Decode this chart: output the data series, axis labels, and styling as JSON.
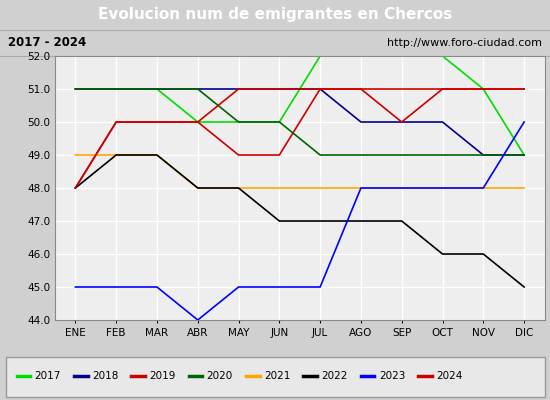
{
  "title": "Evolucion num de emigrantes en Chercos",
  "subtitle_left": "2017 - 2024",
  "subtitle_right": "http://www.foro-ciudad.com",
  "months": [
    "ENE",
    "FEB",
    "MAR",
    "ABR",
    "MAY",
    "JUN",
    "JUL",
    "AGO",
    "SEP",
    "OCT",
    "NOV",
    "DIC"
  ],
  "ylim": [
    44.0,
    52.0
  ],
  "yticks": [
    44.0,
    45.0,
    46.0,
    47.0,
    48.0,
    49.0,
    50.0,
    51.0,
    52.0
  ],
  "series": {
    "2017": {
      "color": "#00dd00",
      "values": [
        51.0,
        51.0,
        51.0,
        50.0,
        50.0,
        50.0,
        52.0,
        52.0,
        52.0,
        52.0,
        51.0,
        49.0
      ]
    },
    "2018": {
      "color": "#00008b",
      "values": [
        51.0,
        51.0,
        51.0,
        51.0,
        51.0,
        51.0,
        51.0,
        50.0,
        50.0,
        50.0,
        49.0,
        49.0
      ]
    },
    "2019": {
      "color": "#cc0000",
      "values": [
        48.0,
        50.0,
        50.0,
        50.0,
        49.0,
        49.0,
        51.0,
        51.0,
        50.0,
        51.0,
        51.0,
        51.0
      ]
    },
    "2020": {
      "color": "#006400",
      "values": [
        51.0,
        51.0,
        51.0,
        51.0,
        50.0,
        50.0,
        49.0,
        49.0,
        49.0,
        49.0,
        49.0,
        49.0
      ]
    },
    "2021": {
      "color": "#ffa500",
      "values": [
        49.0,
        49.0,
        49.0,
        48.0,
        48.0,
        48.0,
        48.0,
        48.0,
        48.0,
        48.0,
        48.0,
        48.0
      ]
    },
    "2022": {
      "color": "#000000",
      "values": [
        48.0,
        49.0,
        49.0,
        48.0,
        48.0,
        47.0,
        47.0,
        47.0,
        47.0,
        46.0,
        46.0,
        45.0
      ]
    },
    "2023": {
      "color": "#0000ff",
      "values": [
        45.0,
        45.0,
        45.0,
        44.0,
        45.0,
        45.0,
        45.0,
        48.0,
        48.0,
        48.0,
        48.0,
        50.0
      ]
    },
    "2024": {
      "color": "#cc0000",
      "values": [
        48.0,
        50.0,
        50.0,
        50.0,
        51.0,
        51.0,
        51.0,
        51.0,
        51.0,
        51.0,
        51.0,
        51.0
      ]
    }
  },
  "title_bg_color": "#4a90d9",
  "title_text_color": "#ffffff",
  "subtitle_bg_color": "#e0e0e0",
  "plot_bg_color": "#eeeeee",
  "grid_color": "#ffffff",
  "legend_bg_color": "#e8e8e8",
  "legend_border_color": "#999999",
  "fig_bg_color": "#d0d0d0"
}
